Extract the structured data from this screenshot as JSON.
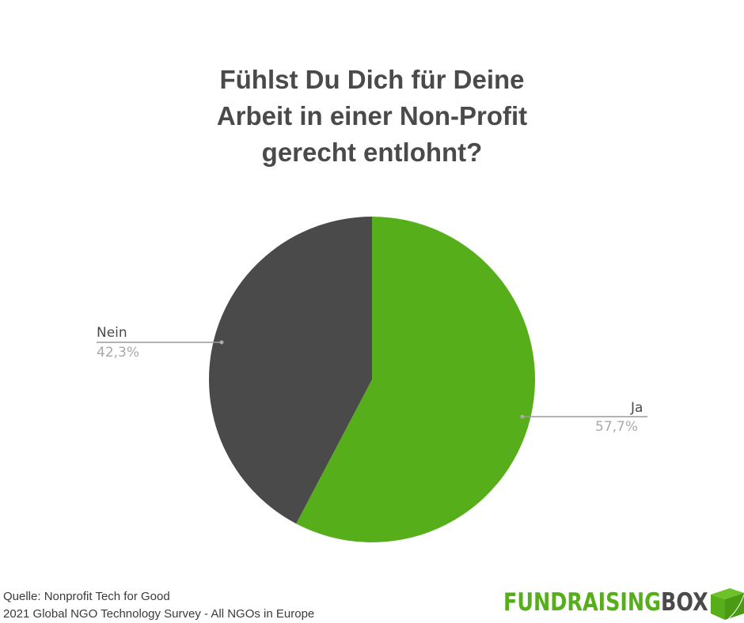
{
  "chart_data": {
    "type": "pie",
    "title": [
      "Fühlst Du Dich für Deine",
      "Arbeit in einer Non-Profit",
      "gerecht entlohnt?"
    ],
    "slices": [
      {
        "label": "Ja",
        "value": 57.7,
        "value_label": "57,7%",
        "color": "#56ae1a"
      },
      {
        "label": "Nein",
        "value": 42.3,
        "value_label": "42,3%",
        "color": "#4a4a4a"
      }
    ],
    "start": "top",
    "direction": "clockwise"
  },
  "footer": {
    "source_line1": "Quelle: Nonprofit Tech for Good",
    "source_line2": "2021 Global NGO Technology Survey - All NGOs in Europe"
  },
  "logo": {
    "part1": "FUNDRAISING",
    "part2": "BOX",
    "color1": "#56ae1a",
    "color2": "#4a4a4a"
  }
}
